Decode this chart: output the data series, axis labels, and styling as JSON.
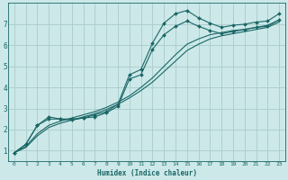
{
  "xlabel": "Humidex (Indice chaleur)",
  "bg_color": "#cce8e8",
  "grid_color": "#aacccc",
  "line_color": "#1a6666",
  "xlim": [
    -0.5,
    23.5
  ],
  "ylim": [
    0.5,
    8.0
  ],
  "xticks": [
    0,
    1,
    2,
    3,
    4,
    5,
    6,
    7,
    8,
    9,
    10,
    11,
    12,
    13,
    14,
    15,
    16,
    17,
    18,
    19,
    20,
    21,
    22,
    23
  ],
  "yticks": [
    1,
    2,
    3,
    4,
    5,
    6,
    7
  ],
  "series": [
    {
      "x": [
        0,
        1,
        2,
        3,
        4,
        5,
        6,
        7,
        8,
        9,
        10,
        11,
        12,
        13,
        14,
        15,
        16,
        17,
        18,
        19,
        20,
        21,
        22,
        23
      ],
      "y": [
        0.9,
        1.3,
        2.2,
        2.6,
        2.5,
        2.45,
        2.55,
        2.7,
        2.85,
        3.2,
        4.6,
        4.85,
        6.1,
        7.05,
        7.5,
        7.65,
        7.3,
        7.05,
        6.85,
        6.95,
        7.0,
        7.1,
        7.15,
        7.5
      ],
      "marker": true
    },
    {
      "x": [
        0,
        1,
        2,
        3,
        4,
        5,
        6,
        7,
        8,
        9,
        10,
        11,
        12,
        13,
        14,
        15,
        16,
        17,
        18,
        19,
        20,
        21,
        22,
        23
      ],
      "y": [
        0.9,
        1.3,
        2.2,
        2.5,
        2.5,
        2.5,
        2.55,
        2.6,
        2.8,
        3.1,
        4.4,
        4.6,
        5.8,
        6.5,
        6.9,
        7.15,
        6.9,
        6.7,
        6.55,
        6.65,
        6.75,
        6.85,
        6.9,
        7.2
      ],
      "marker": true
    },
    {
      "x": [
        0,
        1,
        2,
        3,
        4,
        5,
        6,
        7,
        8,
        9,
        10,
        11,
        12,
        13,
        14,
        15,
        16,
        17,
        18,
        19,
        20,
        21,
        22,
        23
      ],
      "y": [
        0.9,
        1.2,
        1.8,
        2.2,
        2.4,
        2.55,
        2.7,
        2.85,
        3.05,
        3.3,
        3.6,
        4.0,
        4.45,
        5.0,
        5.55,
        6.05,
        6.3,
        6.5,
        6.6,
        6.7,
        6.75,
        6.85,
        6.95,
        7.2
      ],
      "marker": false
    },
    {
      "x": [
        0,
        1,
        2,
        3,
        4,
        5,
        6,
        7,
        8,
        9,
        10,
        11,
        12,
        13,
        14,
        15,
        16,
        17,
        18,
        19,
        20,
        21,
        22,
        23
      ],
      "y": [
        0.9,
        1.15,
        1.7,
        2.1,
        2.3,
        2.45,
        2.6,
        2.75,
        2.95,
        3.2,
        3.5,
        3.85,
        4.25,
        4.75,
        5.25,
        5.75,
        6.05,
        6.3,
        6.45,
        6.55,
        6.65,
        6.75,
        6.85,
        7.1
      ],
      "marker": false
    }
  ]
}
